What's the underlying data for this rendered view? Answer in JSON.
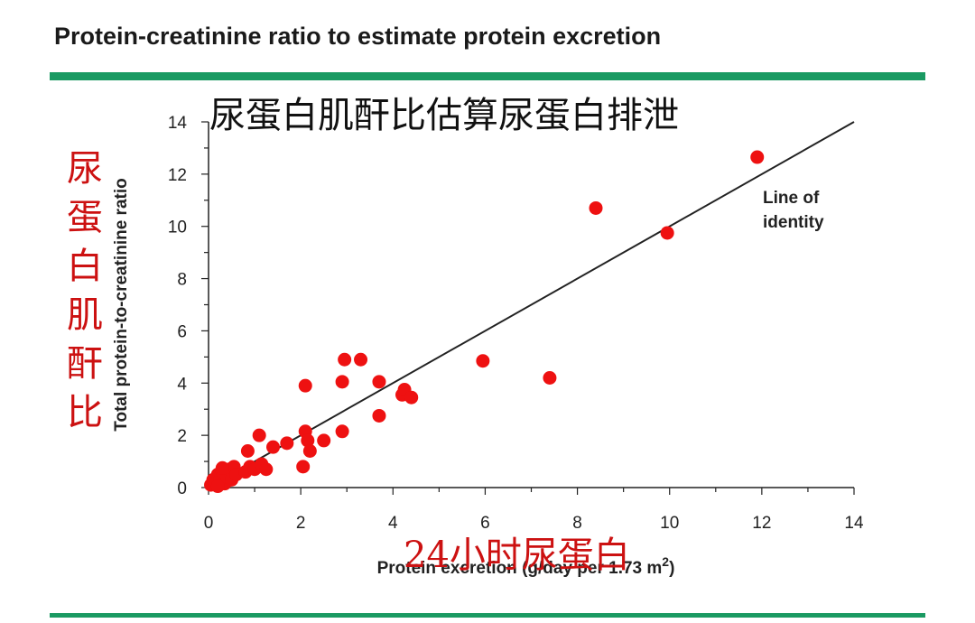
{
  "header": {
    "title": "Protein-creatinine ratio to estimate protein excretion"
  },
  "annotations": {
    "cn_title": "尿蛋白肌酐比估算尿蛋白排泄",
    "cn_ylabel": "尿蛋白肌酐比",
    "cn_xlabel": "24小时尿蛋白"
  },
  "colors": {
    "accent_rule": "#1a9a62",
    "points": "#ee1111",
    "identity_line": "#222222",
    "cn_annotation": "#cc1111"
  },
  "chart_data": {
    "type": "scatter",
    "xlabel": "Protein excretion (g/day per 1.73 m",
    "xlabel_sup": "2",
    "xlabel_tail": ")",
    "ylabel": "Total protein-to-creatinine ratio",
    "xlim": [
      0,
      14
    ],
    "ylim": [
      0,
      14
    ],
    "xticks": [
      0,
      2,
      4,
      6,
      8,
      10,
      12,
      14
    ],
    "yticks": [
      0,
      2,
      4,
      6,
      8,
      10,
      12,
      14
    ],
    "grid": false,
    "reference_line": {
      "label_line1": "Line of",
      "label_line2": "identity",
      "from": [
        0,
        0
      ],
      "to": [
        14,
        14
      ]
    },
    "points": [
      [
        0.05,
        0.1
      ],
      [
        0.1,
        0.3
      ],
      [
        0.15,
        0.2
      ],
      [
        0.2,
        0.5
      ],
      [
        0.25,
        0.3
      ],
      [
        0.3,
        0.6
      ],
      [
        0.35,
        0.15
      ],
      [
        0.4,
        0.4
      ],
      [
        0.45,
        0.7
      ],
      [
        0.5,
        0.3
      ],
      [
        0.55,
        0.8
      ],
      [
        0.6,
        0.5
      ],
      [
        0.3,
        0.75
      ],
      [
        0.2,
        0.05
      ],
      [
        0.8,
        0.6
      ],
      [
        0.85,
        1.4
      ],
      [
        0.9,
        0.8
      ],
      [
        1.0,
        0.7
      ],
      [
        1.1,
        2.0
      ],
      [
        1.15,
        0.9
      ],
      [
        1.25,
        0.7
      ],
      [
        1.4,
        1.55
      ],
      [
        1.7,
        1.7
      ],
      [
        2.05,
        0.8
      ],
      [
        2.1,
        3.9
      ],
      [
        2.1,
        2.15
      ],
      [
        2.15,
        1.8
      ],
      [
        2.2,
        1.4
      ],
      [
        2.5,
        1.8
      ],
      [
        2.9,
        2.15
      ],
      [
        2.9,
        4.05
      ],
      [
        2.95,
        4.9
      ],
      [
        3.3,
        4.9
      ],
      [
        3.7,
        2.75
      ],
      [
        3.7,
        4.05
      ],
      [
        4.2,
        3.55
      ],
      [
        4.25,
        3.75
      ],
      [
        4.4,
        3.45
      ],
      [
        5.95,
        4.85
      ],
      [
        7.4,
        4.2
      ],
      [
        8.4,
        10.7
      ],
      [
        9.95,
        9.75
      ],
      [
        11.9,
        12.65
      ]
    ]
  }
}
